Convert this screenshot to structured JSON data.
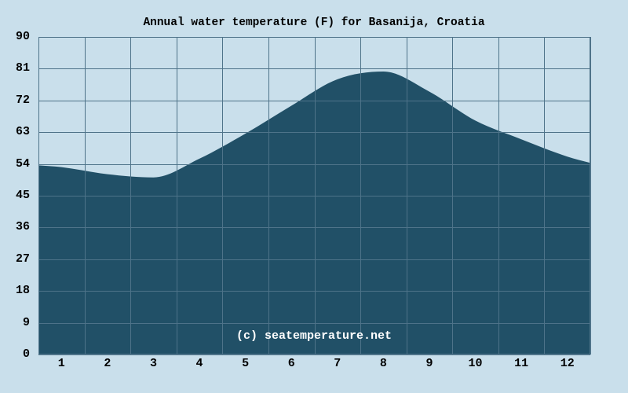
{
  "title": "Annual water temperature (F) for Basanija, Croatia",
  "watermark": "(c) seatemperature.net",
  "chart_data": {
    "type": "area",
    "title": "Annual water temperature (F) for Basanija, Croatia",
    "xlabel": "",
    "ylabel": "",
    "x": [
      1,
      2,
      3,
      4,
      5,
      6,
      7,
      8,
      9,
      10,
      11,
      12
    ],
    "x_tick_labels": [
      "1",
      "2",
      "3",
      "4",
      "5",
      "6",
      "7",
      "8",
      "9",
      "10",
      "11",
      "12"
    ],
    "values": [
      53.1,
      51.1,
      50.2,
      55.5,
      62.6,
      70.5,
      78.0,
      80.2,
      74.5,
      66.3,
      61.0,
      56.1
    ],
    "edge_start_value": 53.6,
    "edge_end_value": 54.3,
    "y_ticks": [
      0,
      9,
      18,
      27,
      36,
      45,
      54,
      63,
      72,
      81,
      90
    ],
    "ylim": [
      0,
      90
    ],
    "grid": true,
    "legend": false,
    "colors": {
      "background": "#c9dfeb",
      "area_fill": "#215067",
      "gridline": "#4e7389",
      "border": "#4e7389",
      "text": "#000000",
      "watermark": "#ffffff"
    }
  }
}
